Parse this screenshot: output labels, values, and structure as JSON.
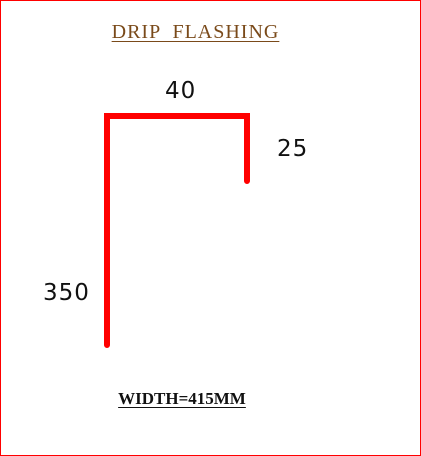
{
  "title": "DRIP  FLASHING",
  "dimensions": {
    "top": "40",
    "right": "25",
    "left": "350"
  },
  "footer": "WIDTH=415MM",
  "colors": {
    "profile_line": "#ff0000",
    "frame": "#ff0000",
    "title_text": "#7a4a1a",
    "text": "#111111"
  }
}
